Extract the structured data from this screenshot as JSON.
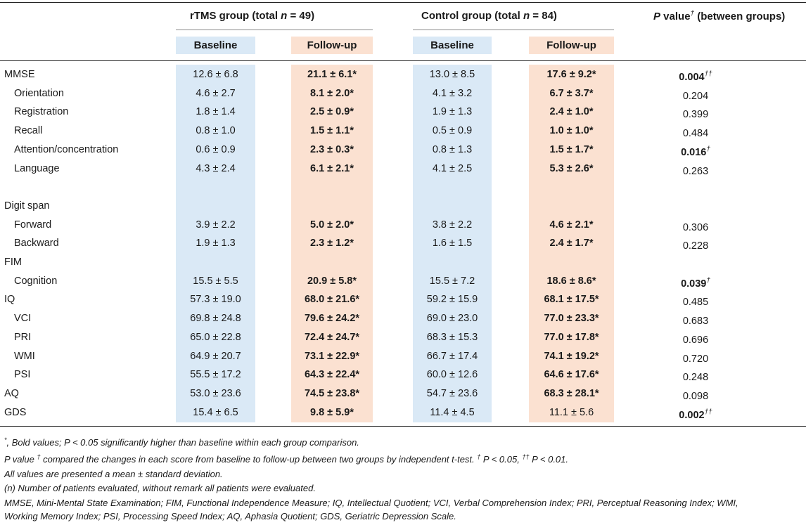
{
  "header": {
    "rtms_group": {
      "prefix": "rTMS group (total ",
      "n": "n",
      "suffix": " = 49)"
    },
    "control_group": {
      "prefix": "Control group (total ",
      "n": "n",
      "suffix": " = 84)"
    },
    "p_value": {
      "p": "P",
      "rest": " value",
      "dagger": "†",
      "tail": " (between groups)"
    },
    "baseline": "Baseline",
    "followup": "Follow-up"
  },
  "rows": [
    {
      "label": "MMSE",
      "indent": false,
      "rtms_base": "12.6 ± 6.8",
      "rtms_fu": "21.1 ± 6.1*",
      "ctrl_base": "13.0 ± 8.5",
      "ctrl_fu": "17.6 ± 9.2*",
      "p": "0.004",
      "p_mark": "††",
      "rtms_fu_bold": true,
      "ctrl_fu_bold": true,
      "p_bold": true
    },
    {
      "label": "Orientation",
      "indent": true,
      "rtms_base": "4.6 ± 2.7",
      "rtms_fu": "8.1 ± 2.0*",
      "ctrl_base": "4.1 ± 3.2",
      "ctrl_fu": "6.7 ± 3.7*",
      "p": "0.204",
      "p_mark": "",
      "rtms_fu_bold": true,
      "ctrl_fu_bold": true,
      "p_bold": false
    },
    {
      "label": "Registration",
      "indent": true,
      "rtms_base": "1.8 ± 1.4",
      "rtms_fu": "2.5 ± 0.9*",
      "ctrl_base": "1.9 ± 1.3",
      "ctrl_fu": "2.4 ± 1.0*",
      "p": "0.399",
      "p_mark": "",
      "rtms_fu_bold": true,
      "ctrl_fu_bold": true,
      "p_bold": false
    },
    {
      "label": "Recall",
      "indent": true,
      "rtms_base": "0.8 ± 1.0",
      "rtms_fu": "1.5 ± 1.1*",
      "ctrl_base": "0.5 ± 0.9",
      "ctrl_fu": "1.0 ± 1.0*",
      "p": "0.484",
      "p_mark": "",
      "rtms_fu_bold": true,
      "ctrl_fu_bold": true,
      "p_bold": false
    },
    {
      "label": "Attention/concentration",
      "indent": true,
      "rtms_base": "0.6 ± 0.9",
      "rtms_fu": "2.3 ± 0.3*",
      "ctrl_base": "0.8 ± 1.3",
      "ctrl_fu": "1.5 ± 1.7*",
      "p": "0.016",
      "p_mark": "†",
      "rtms_fu_bold": true,
      "ctrl_fu_bold": true,
      "p_bold": true
    },
    {
      "label": "Language",
      "indent": true,
      "rtms_base": "4.3 ± 2.4",
      "rtms_fu": "6.1 ± 2.1*",
      "ctrl_base": "4.1 ± 2.5",
      "ctrl_fu": "5.3 ± 2.6*",
      "p": "0.263",
      "p_mark": "",
      "rtms_fu_bold": true,
      "ctrl_fu_bold": true,
      "p_bold": false
    },
    {
      "label": "",
      "indent": false,
      "rtms_base": "",
      "rtms_fu": "",
      "ctrl_base": "",
      "ctrl_fu": "",
      "p": "",
      "p_mark": "",
      "rtms_fu_bold": false,
      "ctrl_fu_bold": false,
      "p_bold": false
    },
    {
      "label": "Digit span",
      "indent": false,
      "rtms_base": "",
      "rtms_fu": "",
      "ctrl_base": "",
      "ctrl_fu": "",
      "p": "",
      "p_mark": "",
      "rtms_fu_bold": false,
      "ctrl_fu_bold": false,
      "p_bold": false
    },
    {
      "label": "Forward",
      "indent": true,
      "rtms_base": "3.9 ± 2.2",
      "rtms_fu": "5.0 ± 2.0*",
      "ctrl_base": "3.8 ± 2.2",
      "ctrl_fu": "4.6 ± 2.1*",
      "p": "0.306",
      "p_mark": "",
      "rtms_fu_bold": true,
      "ctrl_fu_bold": true,
      "p_bold": false
    },
    {
      "label": "Backward",
      "indent": true,
      "rtms_base": "1.9 ± 1.3",
      "rtms_fu": "2.3 ± 1.2*",
      "ctrl_base": "1.6 ± 1.5",
      "ctrl_fu": "2.4 ± 1.7*",
      "p": "0.228",
      "p_mark": "",
      "rtms_fu_bold": true,
      "ctrl_fu_bold": true,
      "p_bold": false
    },
    {
      "label": "FIM",
      "indent": false,
      "rtms_base": "",
      "rtms_fu": "",
      "ctrl_base": "",
      "ctrl_fu": "",
      "p": "",
      "p_mark": "",
      "rtms_fu_bold": false,
      "ctrl_fu_bold": false,
      "p_bold": false
    },
    {
      "label": "Cognition",
      "indent": true,
      "rtms_base": "15.5 ± 5.5",
      "rtms_fu": "20.9 ± 5.8*",
      "ctrl_base": "15.5 ± 7.2",
      "ctrl_fu": "18.6 ± 8.6*",
      "p": "0.039",
      "p_mark": "†",
      "rtms_fu_bold": true,
      "ctrl_fu_bold": true,
      "p_bold": true
    },
    {
      "label": "IQ",
      "indent": false,
      "rtms_base": "57.3 ± 19.0",
      "rtms_fu": "68.0 ± 21.6*",
      "ctrl_base": "59.2 ± 15.9",
      "ctrl_fu": "68.1 ± 17.5*",
      "p": "0.485",
      "p_mark": "",
      "rtms_fu_bold": true,
      "ctrl_fu_bold": true,
      "p_bold": false
    },
    {
      "label": "VCI",
      "indent": true,
      "rtms_base": "69.8 ± 24.8",
      "rtms_fu": "79.6 ± 24.2*",
      "ctrl_base": "69.0 ± 23.0",
      "ctrl_fu": "77.0 ± 23.3*",
      "p": "0.683",
      "p_mark": "",
      "rtms_fu_bold": true,
      "ctrl_fu_bold": true,
      "p_bold": false
    },
    {
      "label": "PRI",
      "indent": true,
      "rtms_base": "65.0 ± 22.8",
      "rtms_fu": "72.4 ± 24.7*",
      "ctrl_base": "68.3 ± 15.3",
      "ctrl_fu": "77.0 ± 17.8*",
      "p": "0.696",
      "p_mark": "",
      "rtms_fu_bold": true,
      "ctrl_fu_bold": true,
      "p_bold": false
    },
    {
      "label": "WMI",
      "indent": true,
      "rtms_base": "64.9 ± 20.7",
      "rtms_fu": "73.1 ± 22.9*",
      "ctrl_base": "66.7 ± 17.4",
      "ctrl_fu": "74.1 ± 19.2*",
      "p": "0.720",
      "p_mark": "",
      "rtms_fu_bold": true,
      "ctrl_fu_bold": true,
      "p_bold": false
    },
    {
      "label": "PSI",
      "indent": true,
      "rtms_base": "55.5 ± 17.2",
      "rtms_fu": "64.3 ± 22.4*",
      "ctrl_base": "60.0 ± 12.6",
      "ctrl_fu": "64.6 ± 17.6*",
      "p": "0.248",
      "p_mark": "",
      "rtms_fu_bold": true,
      "ctrl_fu_bold": true,
      "p_bold": false
    },
    {
      "label": "AQ",
      "indent": false,
      "rtms_base": "53.0 ± 23.6",
      "rtms_fu": "74.5 ± 23.8*",
      "ctrl_base": "54.7 ± 23.6",
      "ctrl_fu": "68.3 ± 28.1*",
      "p": "0.098",
      "p_mark": "",
      "rtms_fu_bold": true,
      "ctrl_fu_bold": true,
      "p_bold": false
    },
    {
      "label": "GDS",
      "indent": false,
      "rtms_base": "15.4 ± 6.5",
      "rtms_fu": "9.8 ± 5.9*",
      "ctrl_base": "11.4 ± 4.5",
      "ctrl_fu": "11.1 ± 5.6",
      "p": "0.002",
      "p_mark": "††",
      "rtms_fu_bold": true,
      "ctrl_fu_bold": false,
      "p_bold": true
    }
  ],
  "footnotes": {
    "star": {
      "mark": "*",
      "text": ", Bold values; P < 0.05 significantly higher than baseline within each group comparison."
    },
    "pvalue": {
      "a": "P value ",
      "dagger1": "†",
      "b": " compared the changes in each score from baseline to follow-up between two groups by independent t-test. ",
      "dagger2": "†",
      "c": " P < 0.05, ",
      "dagger3": "††",
      "d": " P < 0.01."
    },
    "mean": "All values are presented a mean ± standard deviation.",
    "n": "(n) Number of patients evaluated, without remark all patients were evaluated.",
    "abbrev1": "MMSE, Mini-Mental State Examination; FIM, Functional Independence Measure; IQ, Intellectual Quotient; VCI, Verbal Comprehension Index; PRI, Perceptual Reasoning Index; WMI,",
    "abbrev2": "Working Memory Index; PSI, Processing Speed Index; AQ, Aphasia Quotient; GDS, Geriatric Depression Scale."
  },
  "colors": {
    "baseline_band": "#dae9f6",
    "followup_band": "#fbe1d1",
    "rule": "#222222"
  }
}
